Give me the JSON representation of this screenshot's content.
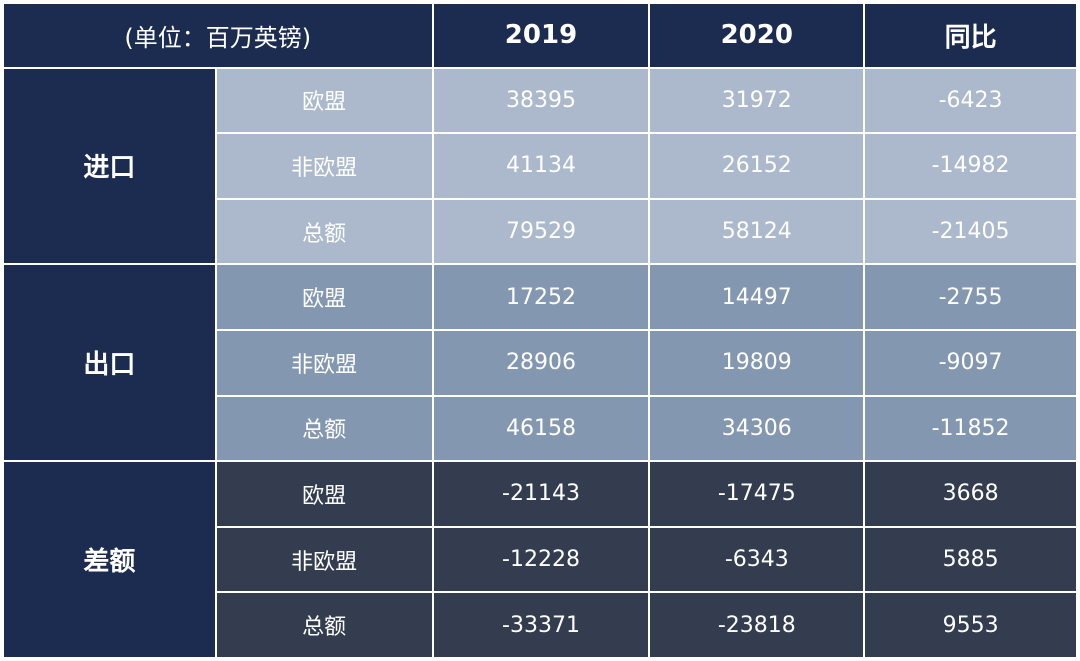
{
  "table": {
    "header": {
      "unit_label": "(单位：百万英镑)",
      "col_2019": "2019",
      "col_2020": "2020",
      "col_yoy": "同比"
    },
    "groups": [
      {
        "label": "进口",
        "rows": [
          {
            "category": "欧盟",
            "v2019": "38395",
            "v2020": "31972",
            "yoy": "-6423"
          },
          {
            "category": "非欧盟",
            "v2019": "41134",
            "v2020": "26152",
            "yoy": "-14982"
          },
          {
            "category": "总额",
            "v2019": "79529",
            "v2020": "58124",
            "yoy": "-21405"
          }
        ]
      },
      {
        "label": "出口",
        "rows": [
          {
            "category": "欧盟",
            "v2019": "17252",
            "v2020": "14497",
            "yoy": "-2755"
          },
          {
            "category": "非欧盟",
            "v2019": "28906",
            "v2020": "19809",
            "yoy": "-9097"
          },
          {
            "category": "总额",
            "v2019": "46158",
            "v2020": "34306",
            "yoy": "-11852"
          }
        ]
      },
      {
        "label": "差额",
        "rows": [
          {
            "category": "欧盟",
            "v2019": "-21143",
            "v2020": "-17475",
            "yoy": "3668"
          },
          {
            "category": "非欧盟",
            "v2019": "-12228",
            "v2020": "-6343",
            "yoy": "5885"
          },
          {
            "category": "总额",
            "v2019": "-33371",
            "v2020": "-23818",
            "yoy": "9553"
          }
        ]
      }
    ],
    "colors": {
      "header_bg": "#1c2c50",
      "import_bg": "#acb8cb",
      "export_bg": "#8497b0",
      "balance_bg": "#333d4f"
    }
  }
}
